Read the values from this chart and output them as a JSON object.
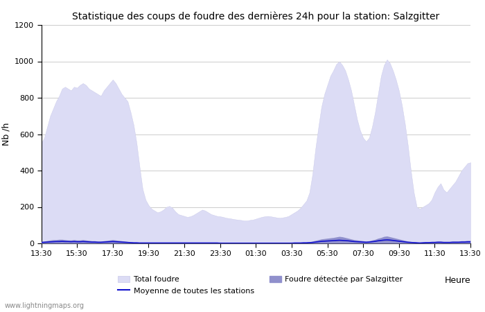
{
  "title": "Statistique des coups de foudre des dernières 24h pour la station: Salzgitter",
  "xlabel": "Heure",
  "ylabel": "Nb /h",
  "ylim": [
    0,
    1200
  ],
  "yticks": [
    0,
    200,
    400,
    600,
    800,
    1000,
    1200
  ],
  "xtick_labels": [
    "13:30",
    "15:30",
    "17:30",
    "19:30",
    "21:30",
    "23:30",
    "01:30",
    "03:30",
    "05:30",
    "07:30",
    "09:30",
    "11:30",
    "13:30"
  ],
  "background_color": "#ffffff",
  "plot_bg_color": "#ffffff",
  "grid_color": "#cccccc",
  "total_foudre_color": "#dcdcf5",
  "total_foudre_edge": "#c8c8e8",
  "foudre_salzgitter_color": "#9090cc",
  "mean_line_color": "#1010cc",
  "watermark": "www.lightningmaps.org",
  "legend_total": "Total foudre",
  "legend_mean": "Moyenne de toutes les stations",
  "legend_salzgitter": "Foudre détectée par Salzgitter",
  "n_points": 145,
  "total_foudre_values": [
    550,
    580,
    640,
    700,
    740,
    780,
    810,
    850,
    860,
    850,
    840,
    860,
    855,
    870,
    880,
    870,
    850,
    840,
    830,
    820,
    810,
    840,
    860,
    880,
    900,
    880,
    850,
    820,
    800,
    780,
    720,
    650,
    550,
    420,
    300,
    240,
    210,
    190,
    180,
    170,
    175,
    185,
    200,
    205,
    195,
    175,
    160,
    155,
    150,
    145,
    148,
    155,
    165,
    175,
    185,
    180,
    170,
    160,
    155,
    150,
    148,
    145,
    140,
    138,
    135,
    132,
    130,
    128,
    125,
    125,
    128,
    130,
    135,
    140,
    145,
    148,
    150,
    148,
    145,
    142,
    140,
    142,
    145,
    150,
    160,
    170,
    180,
    195,
    215,
    235,
    280,
    380,
    520,
    640,
    750,
    820,
    870,
    920,
    950,
    985,
    1000,
    980,
    950,
    900,
    840,
    760,
    680,
    620,
    580,
    560,
    580,
    640,
    720,
    820,
    920,
    980,
    1010,
    990,
    950,
    900,
    840,
    760,
    660,
    540,
    400,
    280,
    200,
    190,
    200,
    210,
    220,
    240,
    280,
    310,
    330,
    295,
    280,
    300,
    320,
    340,
    370,
    400,
    420,
    440,
    445
  ],
  "salzgitter_values": [
    10,
    12,
    15,
    18,
    20,
    20,
    22,
    22,
    20,
    18,
    18,
    20,
    18,
    18,
    20,
    18,
    16,
    14,
    14,
    12,
    12,
    14,
    16,
    18,
    20,
    18,
    16,
    14,
    12,
    10,
    8,
    6,
    5,
    4,
    4,
    4,
    4,
    4,
    4,
    4,
    4,
    4,
    4,
    4,
    4,
    4,
    3,
    3,
    3,
    3,
    3,
    3,
    3,
    4,
    4,
    4,
    4,
    3,
    3,
    3,
    3,
    3,
    3,
    3,
    3,
    3,
    2,
    2,
    2,
    2,
    2,
    2,
    2,
    2,
    2,
    2,
    2,
    2,
    2,
    2,
    2,
    2,
    2,
    3,
    3,
    4,
    4,
    5,
    5,
    6,
    8,
    12,
    16,
    20,
    24,
    26,
    28,
    30,
    32,
    35,
    38,
    36,
    32,
    28,
    24,
    20,
    18,
    16,
    14,
    12,
    14,
    18,
    22,
    28,
    32,
    38,
    40,
    36,
    32,
    28,
    24,
    20,
    16,
    12,
    10,
    8,
    6,
    5,
    6,
    8,
    8,
    10,
    10,
    12,
    12,
    10,
    10,
    10,
    12,
    12,
    12,
    14,
    14,
    16,
    16
  ],
  "mean_values": [
    5,
    6,
    7,
    8,
    9,
    10,
    10,
    11,
    10,
    10,
    9,
    10,
    9,
    9,
    10,
    9,
    8,
    7,
    7,
    6,
    6,
    7,
    8,
    9,
    10,
    9,
    8,
    7,
    6,
    5,
    4,
    3,
    3,
    2,
    2,
    2,
    2,
    2,
    2,
    2,
    2,
    2,
    2,
    2,
    2,
    2,
    2,
    2,
    2,
    2,
    2,
    2,
    2,
    2,
    2,
    2,
    2,
    2,
    2,
    2,
    1,
    1,
    1,
    1,
    1,
    1,
    1,
    1,
    1,
    1,
    1,
    1,
    1,
    1,
    1,
    1,
    1,
    1,
    1,
    1,
    1,
    1,
    1,
    1,
    1,
    2,
    2,
    2,
    3,
    3,
    4,
    5,
    7,
    9,
    11,
    12,
    13,
    14,
    15,
    16,
    17,
    16,
    15,
    14,
    12,
    10,
    9,
    8,
    7,
    6,
    7,
    9,
    11,
    14,
    16,
    18,
    19,
    18,
    16,
    14,
    12,
    10,
    8,
    6,
    5,
    4,
    3,
    2,
    3,
    4,
    4,
    5,
    5,
    6,
    6,
    5,
    5,
    5,
    6,
    6,
    6,
    7,
    7,
    8,
    8
  ]
}
